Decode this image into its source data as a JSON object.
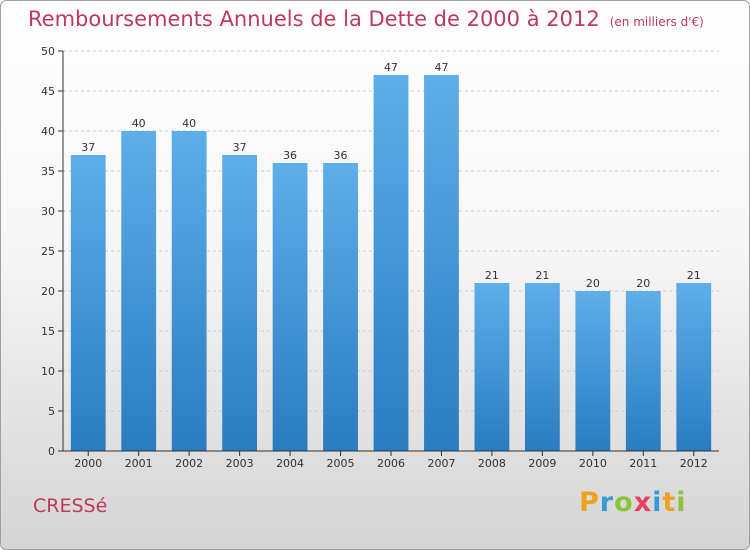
{
  "title": "Remboursements Annuels de la Dette de 2000 à 2012",
  "title_unit": "(en milliers d'€)",
  "commune": "CRESSé",
  "brand": {
    "letters": [
      {
        "char": "P",
        "color": "#f0a020"
      },
      {
        "char": "r",
        "color": "#3a9ad9"
      },
      {
        "char": "o",
        "color": "#8cc43c"
      },
      {
        "char": "x",
        "color": "#e84060"
      },
      {
        "char": "i",
        "color": "#3a9ad9"
      },
      {
        "char": "t",
        "color": "#f0a020"
      },
      {
        "char": "i",
        "color": "#8cc43c"
      }
    ]
  },
  "colors": {
    "bar_top": "#5eaeea",
    "bar_bottom": "#2a7cc0",
    "grid": "#cccccc",
    "axis": "#333333"
  },
  "chart_data": {
    "type": "bar",
    "categories": [
      "2000",
      "2001",
      "2002",
      "2003",
      "2004",
      "2005",
      "2006",
      "2007",
      "2008",
      "2009",
      "2010",
      "2011",
      "2012"
    ],
    "values": [
      37,
      40,
      40,
      37,
      36,
      36,
      47,
      47,
      21,
      21,
      20,
      20,
      21
    ],
    "value_labels": [
      "37",
      "40",
      "40",
      "37",
      "36",
      "36",
      "47",
      "47",
      "21",
      "21",
      "20",
      "20",
      "21"
    ],
    "ylim": [
      0,
      50
    ],
    "yticks": [
      0,
      5,
      10,
      15,
      20,
      25,
      30,
      35,
      40,
      45,
      50
    ],
    "ytick_labels": [
      "0",
      "5",
      "10",
      "15",
      "20",
      "25",
      "30",
      "35",
      "40",
      "45",
      "50"
    ],
    "grid": true,
    "xlabel": "",
    "ylabel": ""
  }
}
